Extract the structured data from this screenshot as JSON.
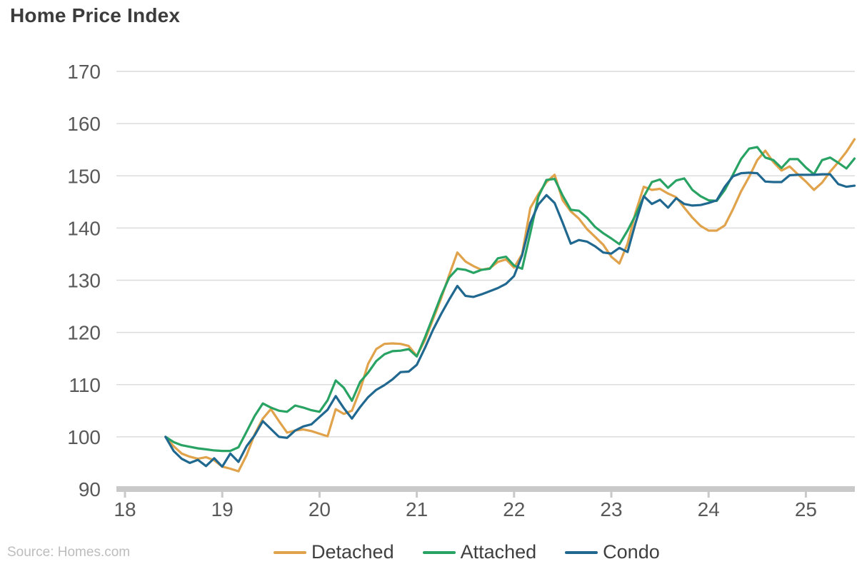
{
  "title": "Home Price Index",
  "source": "Source: Homes.com",
  "colors": {
    "grid": "#dcdcdc",
    "axis_band": "#c9c9c9",
    "tick_label": "#595959",
    "title_text": "#3c3c3c",
    "legend_text": "#3f3f3f",
    "source_text": "#bdbdbd"
  },
  "chart_data": {
    "type": "line",
    "title": "Home Price Index",
    "xlabel": "",
    "ylabel": "",
    "x": {
      "start": "2018-05",
      "end": "2025-06",
      "frequency": "monthly"
    },
    "x_tick_labels": [
      "18",
      "19",
      "20",
      "21",
      "22",
      "23",
      "24",
      "25"
    ],
    "y_ticks": [
      90,
      100,
      110,
      120,
      130,
      140,
      150,
      160,
      170
    ],
    "ylim": [
      90,
      170
    ],
    "grid": "horizontal",
    "legend_position": "bottom",
    "series": [
      {
        "name": "Detached",
        "color": "#e0a24a",
        "values": [
          100,
          98.2,
          96.8,
          96.2,
          95.8,
          96.1,
          95.5,
          94.3,
          93.9,
          93.4,
          96.5,
          100.5,
          103.5,
          105.3,
          103.0,
          100.8,
          101.2,
          101.4,
          101.1,
          100.6,
          100.1,
          105.3,
          104.4,
          105.0,
          109.0,
          114.0,
          116.8,
          117.8,
          117.9,
          117.8,
          117.4,
          115.5,
          118.5,
          122.5,
          126.5,
          131.0,
          135.3,
          133.6,
          132.7,
          132.0,
          132.3,
          133.5,
          134.0,
          132.4,
          135.0,
          143.8,
          146.5,
          148.8,
          150.2,
          145.3,
          143.2,
          141.8,
          139.8,
          138.3,
          136.8,
          134.5,
          133.2,
          137.0,
          143.0,
          147.9,
          147.3,
          147.5,
          146.6,
          145.9,
          143.9,
          142.0,
          140.4,
          139.5,
          139.5,
          140.5,
          143.6,
          147.0,
          149.8,
          153.0,
          154.8,
          152.6,
          151.0,
          151.8,
          150.3,
          148.9,
          147.3,
          148.7,
          150.8,
          152.6,
          154.6,
          157.0
        ]
      },
      {
        "name": "Attached",
        "color": "#29a363",
        "values": [
          100,
          99.0,
          98.4,
          98.1,
          97.8,
          97.6,
          97.4,
          97.3,
          97.3,
          98.0,
          101.0,
          104.0,
          106.4,
          105.6,
          105.0,
          104.8,
          106.0,
          105.6,
          105.1,
          104.8,
          107.0,
          110.8,
          109.4,
          106.9,
          110.5,
          112.3,
          114.5,
          115.8,
          116.4,
          116.5,
          116.8,
          115.4,
          119.0,
          123.0,
          127.0,
          130.5,
          132.2,
          132.0,
          131.4,
          132.0,
          132.2,
          134.2,
          134.5,
          132.8,
          132.2,
          139.0,
          146.0,
          149.2,
          149.4,
          146.2,
          143.5,
          143.3,
          142.0,
          140.2,
          139.0,
          138.0,
          136.9,
          139.5,
          142.5,
          146.0,
          148.8,
          149.3,
          147.7,
          149.1,
          149.5,
          147.3,
          146.1,
          145.3,
          145.2,
          147.3,
          150.2,
          153.2,
          155.2,
          155.5,
          153.5,
          153.0,
          151.5,
          153.2,
          153.2,
          151.6,
          150.3,
          153.0,
          153.5,
          152.5,
          151.4,
          153.3
        ]
      },
      {
        "name": "Condo",
        "color": "#20688f",
        "values": [
          100,
          97.3,
          95.8,
          95.0,
          95.6,
          94.4,
          95.9,
          94.3,
          96.8,
          95.2,
          98.2,
          100.3,
          103.0,
          101.5,
          100.0,
          99.8,
          101.2,
          102.0,
          102.4,
          103.8,
          105.2,
          107.8,
          105.5,
          103.5,
          105.7,
          107.6,
          109.0,
          109.9,
          111.0,
          112.4,
          112.5,
          113.8,
          117.0,
          120.5,
          123.5,
          126.3,
          128.9,
          127.0,
          126.8,
          127.3,
          127.9,
          128.5,
          129.3,
          130.8,
          134.8,
          141.0,
          144.5,
          146.3,
          144.8,
          141.0,
          137.0,
          137.7,
          137.4,
          136.5,
          135.3,
          135.1,
          136.2,
          135.4,
          141.0,
          146.1,
          144.6,
          145.4,
          143.9,
          145.7,
          144.6,
          144.3,
          144.4,
          144.8,
          145.3,
          147.9,
          149.9,
          150.5,
          150.6,
          150.5,
          148.9,
          148.8,
          148.8,
          150.1,
          150.2,
          150.2,
          150.2,
          150.3,
          150.3,
          148.4,
          147.9,
          148.1
        ]
      }
    ]
  }
}
